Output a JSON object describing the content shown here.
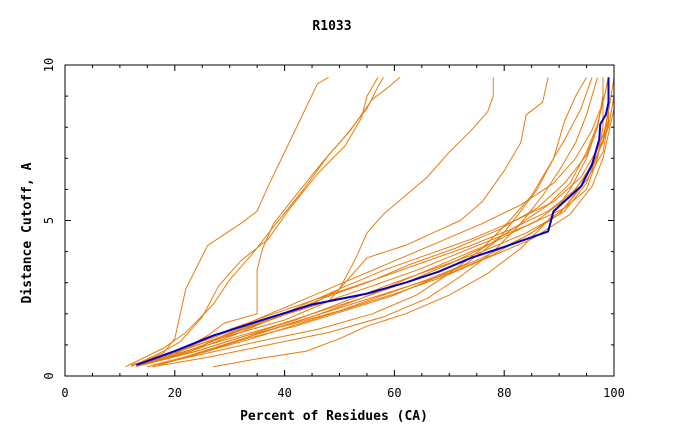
{
  "chart_data": {
    "type": "line",
    "title": "R1033",
    "xlabel": "Percent of Residues (CA)",
    "ylabel": "Distance Cutoff, A",
    "xlim": [
      0,
      100
    ],
    "ylim": [
      0,
      10
    ],
    "xticks": [
      "0",
      "20",
      "40",
      "60",
      "80",
      "100"
    ],
    "yticks": [
      "0",
      "5",
      "10"
    ],
    "grid": false,
    "colors": {
      "highlight": "#0000cc",
      "others": "#e87d0d"
    },
    "highlight_series": {
      "points": [
        [
          13,
          0.35
        ],
        [
          20,
          0.8
        ],
        [
          27,
          1.3
        ],
        [
          35,
          1.75
        ],
        [
          45,
          2.3
        ],
        [
          55,
          2.65
        ],
        [
          62,
          3.0
        ],
        [
          68,
          3.35
        ],
        [
          74,
          3.8
        ],
        [
          80,
          4.15
        ],
        [
          88,
          4.65
        ],
        [
          89,
          5.3
        ],
        [
          94,
          6.1
        ],
        [
          96,
          6.8
        ],
        [
          97.3,
          7.6
        ],
        [
          97.5,
          8.1
        ],
        [
          98.5,
          8.4
        ],
        [
          99,
          8.8
        ],
        [
          99,
          9.6
        ]
      ]
    },
    "series": [
      {
        "points": [
          [
            13,
            0.35
          ],
          [
            18,
            0.75
          ],
          [
            20,
            1.2
          ],
          [
            22,
            2.8
          ],
          [
            24,
            3.5
          ],
          [
            26,
            4.2
          ],
          [
            32,
            4.9
          ],
          [
            35,
            5.3
          ],
          [
            37,
            6.1
          ],
          [
            40,
            7.2
          ],
          [
            43,
            8.3
          ],
          [
            46,
            9.4
          ],
          [
            48,
            9.6
          ]
        ]
      },
      {
        "points": [
          [
            12,
            0.3
          ],
          [
            18,
            0.8
          ],
          [
            21,
            1.1
          ],
          [
            25,
            1.9
          ],
          [
            28,
            2.9
          ],
          [
            32,
            3.7
          ],
          [
            37,
            4.4
          ],
          [
            41,
            5.4
          ],
          [
            46,
            6.5
          ],
          [
            51,
            7.4
          ],
          [
            54,
            8.3
          ],
          [
            55,
            9.0
          ],
          [
            57,
            9.6
          ]
        ]
      },
      {
        "points": [
          [
            11,
            0.3
          ],
          [
            18,
            0.9
          ],
          [
            22,
            1.4
          ],
          [
            27,
            2.3
          ],
          [
            30,
            3.1
          ],
          [
            34,
            3.9
          ],
          [
            38,
            4.8
          ],
          [
            43,
            5.9
          ],
          [
            48,
            7.1
          ],
          [
            52,
            7.9
          ],
          [
            56,
            8.9
          ],
          [
            59,
            9.3
          ],
          [
            61,
            9.6
          ]
        ]
      },
      {
        "points": [
          [
            13,
            0.3
          ],
          [
            20,
            0.7
          ],
          [
            26,
            1.3
          ],
          [
            29,
            1.7
          ],
          [
            35,
            2.0
          ],
          [
            35,
            3.4
          ],
          [
            36,
            4.1
          ],
          [
            38,
            4.9
          ],
          [
            42,
            5.8
          ],
          [
            47,
            6.9
          ],
          [
            51,
            7.7
          ],
          [
            55,
            8.6
          ],
          [
            57,
            9.3
          ],
          [
            58,
            9.6
          ]
        ]
      },
      {
        "points": [
          [
            15,
            0.4
          ],
          [
            23,
            0.8
          ],
          [
            30,
            1.4
          ],
          [
            38,
            1.9
          ],
          [
            45,
            2.3
          ],
          [
            50,
            2.8
          ],
          [
            53,
            3.8
          ],
          [
            55,
            4.6
          ],
          [
            58,
            5.2
          ],
          [
            62,
            5.8
          ],
          [
            66,
            6.4
          ],
          [
            70,
            7.2
          ],
          [
            74,
            7.9
          ],
          [
            77,
            8.5
          ],
          [
            78,
            9.0
          ],
          [
            78,
            9.6
          ]
        ]
      },
      {
        "points": [
          [
            14,
            0.4
          ],
          [
            22,
            0.9
          ],
          [
            30,
            1.3
          ],
          [
            40,
            1.8
          ],
          [
            48,
            2.4
          ],
          [
            52,
            3.2
          ],
          [
            55,
            3.8
          ],
          [
            62,
            4.2
          ],
          [
            67,
            4.6
          ],
          [
            72,
            5.0
          ],
          [
            76,
            5.6
          ],
          [
            80,
            6.6
          ],
          [
            83,
            7.5
          ],
          [
            84,
            8.4
          ],
          [
            87,
            8.8
          ],
          [
            88,
            9.6
          ]
        ]
      },
      {
        "points": [
          [
            14,
            0.35
          ],
          [
            24,
            0.8
          ],
          [
            33,
            1.3
          ],
          [
            42,
            1.7
          ],
          [
            50,
            2.1
          ],
          [
            58,
            2.6
          ],
          [
            66,
            3.1
          ],
          [
            73,
            3.6
          ],
          [
            79,
            4.4
          ],
          [
            83,
            5.3
          ],
          [
            86,
            6.0
          ],
          [
            89,
            7.0
          ],
          [
            91,
            8.2
          ],
          [
            93,
            9.0
          ],
          [
            95,
            9.6
          ]
        ]
      },
      {
        "points": [
          [
            15,
            0.3
          ],
          [
            25,
            0.7
          ],
          [
            35,
            1.1
          ],
          [
            46,
            1.5
          ],
          [
            56,
            2.0
          ],
          [
            64,
            2.6
          ],
          [
            70,
            3.3
          ],
          [
            76,
            4.1
          ],
          [
            81,
            5.0
          ],
          [
            85,
            5.8
          ],
          [
            88,
            6.7
          ],
          [
            91,
            7.6
          ],
          [
            94,
            8.6
          ],
          [
            96,
            9.6
          ]
        ]
      },
      {
        "points": [
          [
            16,
            0.3
          ],
          [
            26,
            0.6
          ],
          [
            37,
            1.0
          ],
          [
            48,
            1.4
          ],
          [
            58,
            1.9
          ],
          [
            66,
            2.5
          ],
          [
            72,
            3.2
          ],
          [
            78,
            4.0
          ],
          [
            83,
            4.9
          ],
          [
            87,
            5.8
          ],
          [
            90,
            6.6
          ],
          [
            93,
            7.5
          ],
          [
            95,
            8.4
          ],
          [
            97,
            9.6
          ]
        ]
      },
      {
        "points": [
          [
            13,
            0.35
          ],
          [
            22,
            0.8
          ],
          [
            30,
            1.2
          ],
          [
            38,
            1.6
          ],
          [
            45,
            2.0
          ],
          [
            54,
            2.5
          ],
          [
            62,
            3.0
          ],
          [
            70,
            3.6
          ],
          [
            77,
            4.2
          ],
          [
            83,
            4.9
          ],
          [
            88,
            5.5
          ],
          [
            92,
            6.2
          ],
          [
            95,
            7.2
          ],
          [
            97,
            8.1
          ],
          [
            98,
            8.8
          ],
          [
            99,
            9.6
          ]
        ]
      },
      {
        "points": [
          [
            13,
            0.35
          ],
          [
            21,
            0.8
          ],
          [
            29,
            1.3
          ],
          [
            37,
            1.8
          ],
          [
            46,
            2.3
          ],
          [
            56,
            2.9
          ],
          [
            64,
            3.4
          ],
          [
            71,
            3.9
          ],
          [
            78,
            4.4
          ],
          [
            85,
            4.9
          ],
          [
            91,
            5.4
          ],
          [
            95,
            6.0
          ],
          [
            97,
            7.0
          ],
          [
            98,
            8.0
          ],
          [
            98,
            9.6
          ]
        ]
      },
      {
        "points": [
          [
            14,
            0.4
          ],
          [
            22,
            0.9
          ],
          [
            30,
            1.5
          ],
          [
            38,
            2.0
          ],
          [
            48,
            2.6
          ],
          [
            58,
            3.2
          ],
          [
            66,
            3.7
          ],
          [
            74,
            4.2
          ],
          [
            81,
            4.7
          ],
          [
            88,
            5.3
          ],
          [
            93,
            6.0
          ],
          [
            96,
            6.8
          ],
          [
            98,
            7.5
          ],
          [
            99,
            8.5
          ],
          [
            100,
            9.6
          ]
        ]
      },
      {
        "points": [
          [
            13,
            0.35
          ],
          [
            23,
            0.8
          ],
          [
            32,
            1.4
          ],
          [
            41,
            2.1
          ],
          [
            50,
            2.8
          ],
          [
            58,
            3.4
          ],
          [
            66,
            3.9
          ],
          [
            74,
            4.4
          ],
          [
            82,
            5.0
          ],
          [
            89,
            5.6
          ],
          [
            94,
            6.4
          ],
          [
            97,
            7.3
          ],
          [
            99,
            8.2
          ],
          [
            99,
            9.6
          ]
        ]
      },
      {
        "points": [
          [
            14,
            0.35
          ],
          [
            24,
            0.8
          ],
          [
            33,
            1.3
          ],
          [
            42,
            1.8
          ],
          [
            51,
            2.4
          ],
          [
            60,
            3.0
          ],
          [
            68,
            3.5
          ],
          [
            76,
            4.0
          ],
          [
            84,
            4.6
          ],
          [
            91,
            5.3
          ],
          [
            95,
            6.2
          ],
          [
            97,
            7.1
          ],
          [
            99,
            8.0
          ],
          [
            100,
            9.0
          ]
        ]
      },
      {
        "points": [
          [
            16,
            0.35
          ],
          [
            25,
            0.75
          ],
          [
            34,
            1.2
          ],
          [
            43,
            1.7
          ],
          [
            52,
            2.2
          ],
          [
            61,
            2.7
          ],
          [
            69,
            3.2
          ],
          [
            77,
            3.8
          ],
          [
            85,
            4.4
          ],
          [
            92,
            5.2
          ],
          [
            96,
            6.1
          ],
          [
            98,
            7.0
          ],
          [
            99,
            7.8
          ],
          [
            100,
            8.6
          ]
        ]
      },
      {
        "points": [
          [
            15,
            0.3
          ],
          [
            24,
            0.7
          ],
          [
            33,
            1.2
          ],
          [
            42,
            1.6
          ],
          [
            51,
            2.1
          ],
          [
            60,
            2.6
          ],
          [
            68,
            3.2
          ],
          [
            76,
            3.8
          ],
          [
            84,
            4.5
          ],
          [
            90,
            5.2
          ],
          [
            94,
            6.1
          ],
          [
            97,
            7.1
          ],
          [
            99,
            8.1
          ],
          [
            99,
            9.6
          ]
        ]
      },
      {
        "points": [
          [
            14,
            0.35
          ],
          [
            23,
            0.85
          ],
          [
            31,
            1.4
          ],
          [
            39,
            1.9
          ],
          [
            47,
            2.5
          ],
          [
            55,
            3.0
          ],
          [
            63,
            3.6
          ],
          [
            71,
            4.1
          ],
          [
            79,
            4.7
          ],
          [
            86,
            5.4
          ],
          [
            91,
            6.2
          ],
          [
            95,
            7.1
          ],
          [
            97,
            8.0
          ],
          [
            98,
            9.0
          ],
          [
            98,
            9.6
          ]
        ]
      },
      {
        "points": [
          [
            17,
            0.35
          ],
          [
            26,
            0.8
          ],
          [
            34,
            1.3
          ],
          [
            43,
            1.8
          ],
          [
            52,
            2.3
          ],
          [
            61,
            2.8
          ],
          [
            70,
            3.3
          ],
          [
            78,
            3.9
          ],
          [
            85,
            4.6
          ],
          [
            91,
            5.4
          ],
          [
            95,
            6.3
          ],
          [
            98,
            7.2
          ],
          [
            99,
            8.2
          ],
          [
            99,
            9.6
          ]
        ]
      },
      {
        "points": [
          [
            12,
            0.35
          ],
          [
            20,
            0.8
          ],
          [
            28,
            1.3
          ],
          [
            36,
            1.9
          ],
          [
            44,
            2.5
          ],
          [
            52,
            3.1
          ],
          [
            60,
            3.7
          ],
          [
            68,
            4.3
          ],
          [
            76,
            4.9
          ],
          [
            83,
            5.5
          ],
          [
            89,
            6.2
          ],
          [
            93,
            7.0
          ],
          [
            96,
            7.9
          ],
          [
            98,
            8.8
          ],
          [
            99,
            9.6
          ]
        ]
      },
      {
        "points": [
          [
            18,
            0.4
          ],
          [
            27,
            0.9
          ],
          [
            36,
            1.4
          ],
          [
            45,
            1.9
          ],
          [
            54,
            2.5
          ],
          [
            62,
            3.1
          ],
          [
            70,
            3.7
          ],
          [
            78,
            4.3
          ],
          [
            86,
            5.0
          ],
          [
            92,
            5.8
          ],
          [
            96,
            6.7
          ],
          [
            98,
            7.6
          ],
          [
            99,
            8.6
          ]
        ]
      },
      {
        "points": [
          [
            27,
            0.3
          ],
          [
            35,
            0.55
          ],
          [
            44,
            0.8
          ],
          [
            50,
            1.2
          ],
          [
            55,
            1.6
          ],
          [
            62,
            2.0
          ],
          [
            70,
            2.6
          ],
          [
            77,
            3.3
          ],
          [
            83,
            4.1
          ],
          [
            88,
            5.0
          ],
          [
            92,
            6.0
          ],
          [
            95,
            7.0
          ],
          [
            97,
            8.0
          ],
          [
            98,
            9.0
          ],
          [
            98,
            9.6
          ]
        ]
      }
    ]
  }
}
